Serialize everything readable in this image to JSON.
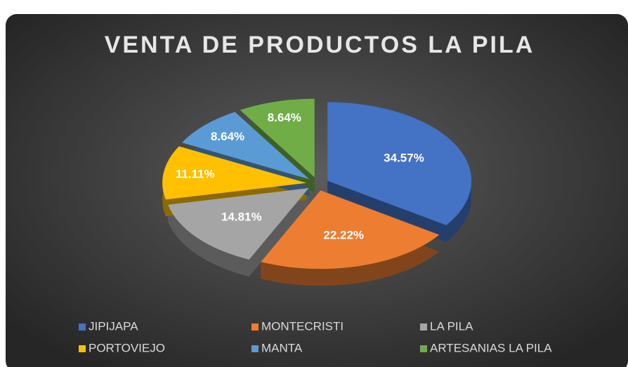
{
  "chart_data": {
    "type": "pie",
    "title": "VENTA DE PRODUCTOS LA PILA",
    "categories": [
      "JIPIJAPA",
      "MONTECRISTI",
      "LA PILA",
      "PORTOVIEJO",
      "MANTA",
      "ARTESANIAS LA PILA"
    ],
    "values": [
      34.57,
      22.22,
      14.81,
      11.11,
      8.64,
      8.64
    ],
    "value_labels": [
      "34.57%",
      "22.22%",
      "14.81%",
      "11.11%",
      "8.64%",
      "8.64%"
    ],
    "colors": [
      "#4472c4",
      "#ed7d31",
      "#a5a5a5",
      "#ffc000",
      "#5b9bd5",
      "#70ad47"
    ],
    "legend": "bottom"
  }
}
